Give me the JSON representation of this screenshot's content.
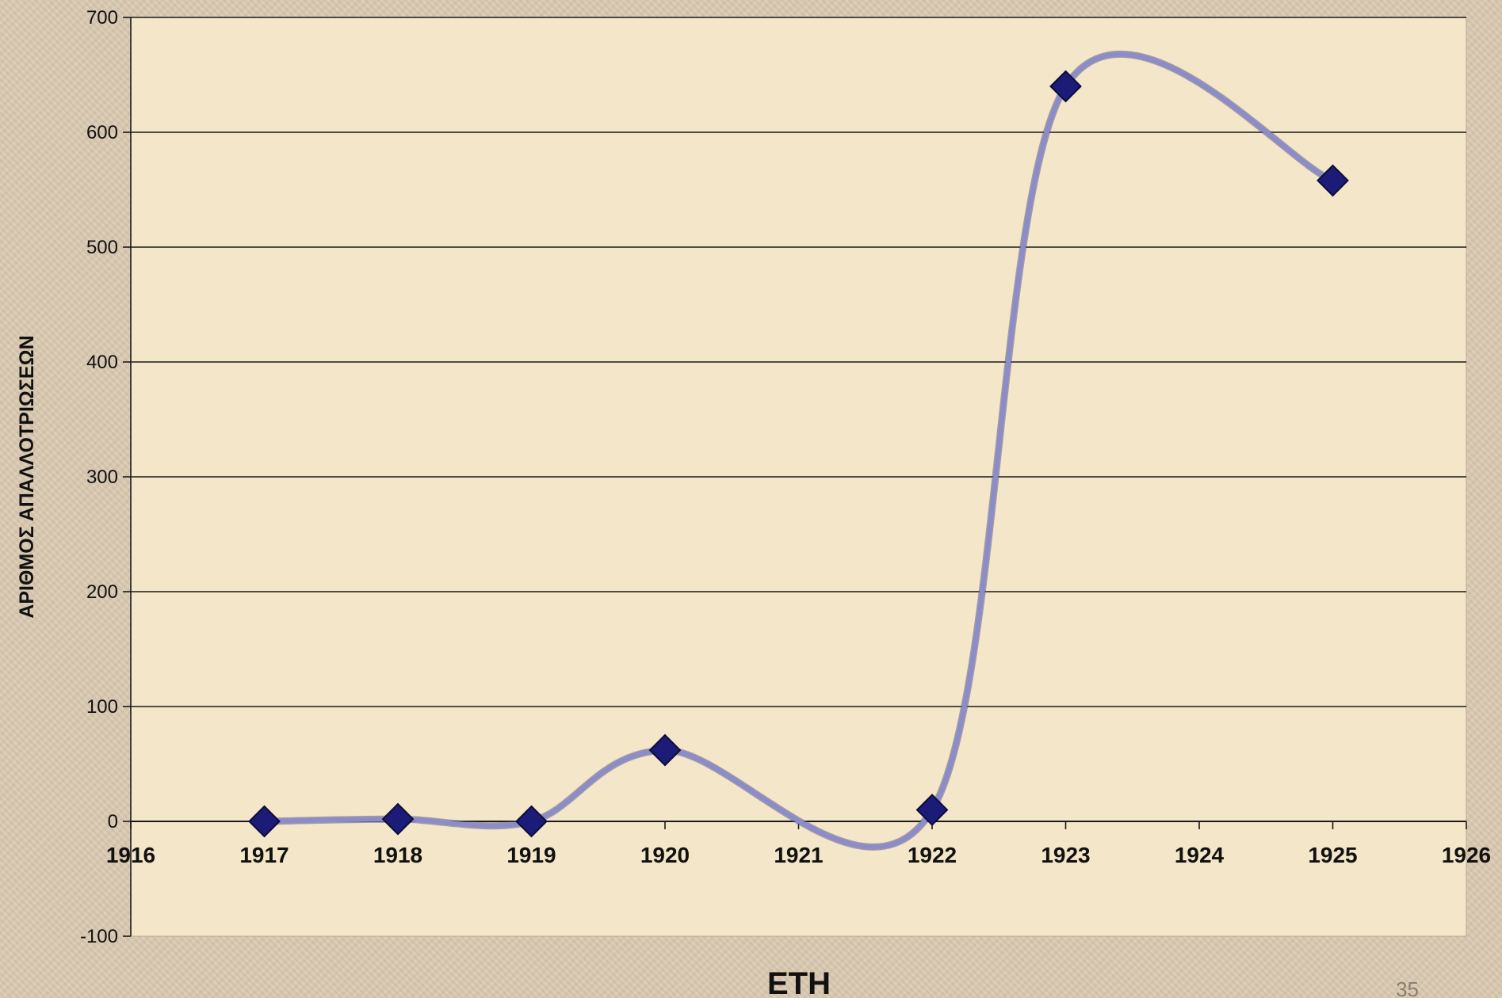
{
  "chart_data": {
    "type": "line",
    "xlabel": "ΕΤΗ",
    "ylabel": "ΑΡΙΘΜΟΣ ΑΠΑΛΛΟΤΡΙΩΣΕΩΝ",
    "x": [
      1917,
      1918,
      1919,
      1920,
      1922,
      1923,
      1925
    ],
    "series": [
      {
        "values": [
          0,
          2,
          0,
          62,
          10,
          640,
          558
        ]
      }
    ],
    "xlim": [
      1916,
      1926
    ],
    "ylim": [
      -100,
      700
    ],
    "x_ticks": [
      "1916",
      "1917",
      "1918",
      "1919",
      "1920",
      "1921",
      "1922",
      "1923",
      "1924",
      "1925",
      "1926"
    ],
    "y_ticks": [
      "700",
      "600",
      "500",
      "400",
      "300",
      "200",
      "100",
      "0",
      "-100"
    ],
    "grid": true,
    "smoothed": true,
    "marker": "diamond",
    "line_color": "#8c8cc8",
    "marker_color": "#1c1c78",
    "plot_background": "#f4e6c8"
  },
  "slide_number": "35"
}
